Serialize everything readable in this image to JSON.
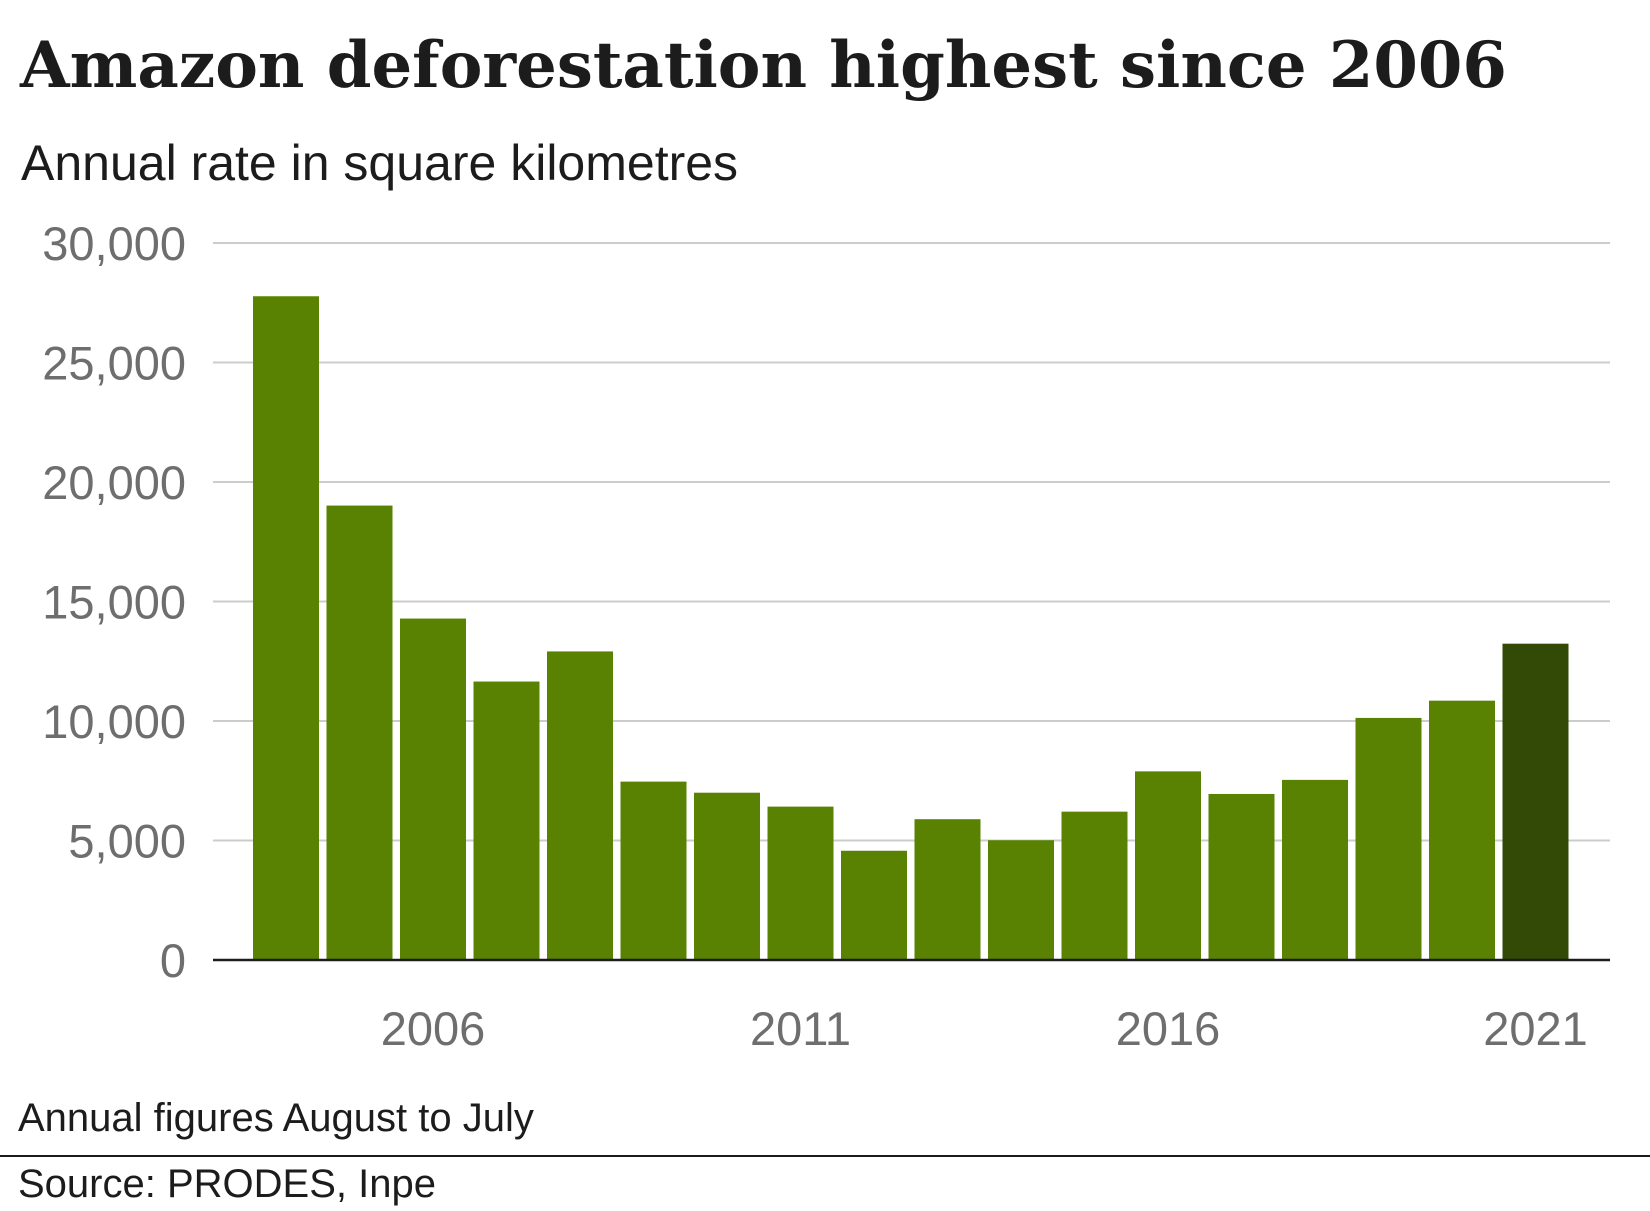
{
  "title": "Amazon deforestation highest since 2006",
  "subtitle": "Annual rate in square kilometres",
  "note": "Annual figures August to July",
  "source": "Source: PRODES, Inpe",
  "colors": {
    "bar": "#598203",
    "highlight": "#324a05",
    "grid": "#cccccc",
    "axis": "#1c1c1c",
    "tick_text": "#6e6e6e"
  },
  "chart_data": {
    "type": "bar",
    "title": "Amazon deforestation highest since 2006",
    "subtitle": "Annual rate in square kilometres",
    "xlabel": "",
    "ylabel": "",
    "categories": [
      2004,
      2005,
      2006,
      2007,
      2008,
      2009,
      2010,
      2011,
      2012,
      2013,
      2014,
      2015,
      2016,
      2017,
      2018,
      2019,
      2020,
      2021
    ],
    "values": [
      27772,
      19014,
      14286,
      11651,
      12911,
      7464,
      7000,
      6418,
      4571,
      5891,
      5012,
      6207,
      7893,
      6947,
      7536,
      10129,
      10851,
      13235
    ],
    "highlight_category": 2021,
    "ylim": [
      0,
      30000
    ],
    "y_ticks": [
      0,
      5000,
      10000,
      15000,
      20000,
      25000,
      30000
    ],
    "y_tick_labels": [
      "0",
      "5,000",
      "10,000",
      "15,000",
      "20,000",
      "25,000",
      "30,000"
    ],
    "x_tick_labels": [
      "2006",
      "2011",
      "2016",
      "2021"
    ],
    "grid": true,
    "legend": "none"
  }
}
